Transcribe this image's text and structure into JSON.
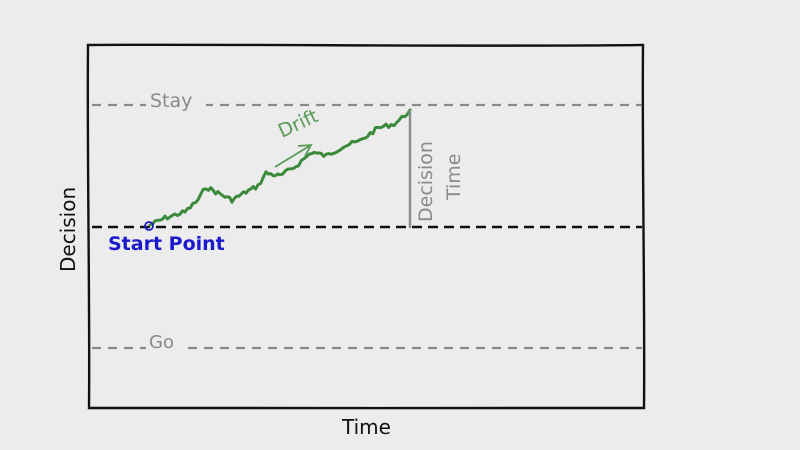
{
  "diagram": {
    "x_axis_label": "Time",
    "y_axis_label": "Decision",
    "upper_boundary_label": "Stay",
    "lower_boundary_label": "Go",
    "start_point_label": "Start Point",
    "drift_label": "Drift",
    "decision_time_label_line1": "Decision",
    "decision_time_label_line2": "Time",
    "colors": {
      "background": "#ececec",
      "frame": "#111111",
      "boundary": "#8a8a8a",
      "start_line": "#111111",
      "path": "#3b8a3b",
      "drift": "#5a9a5a",
      "start_point": "#1a1acc",
      "decision_time": "#8a8a8a"
    }
  }
}
